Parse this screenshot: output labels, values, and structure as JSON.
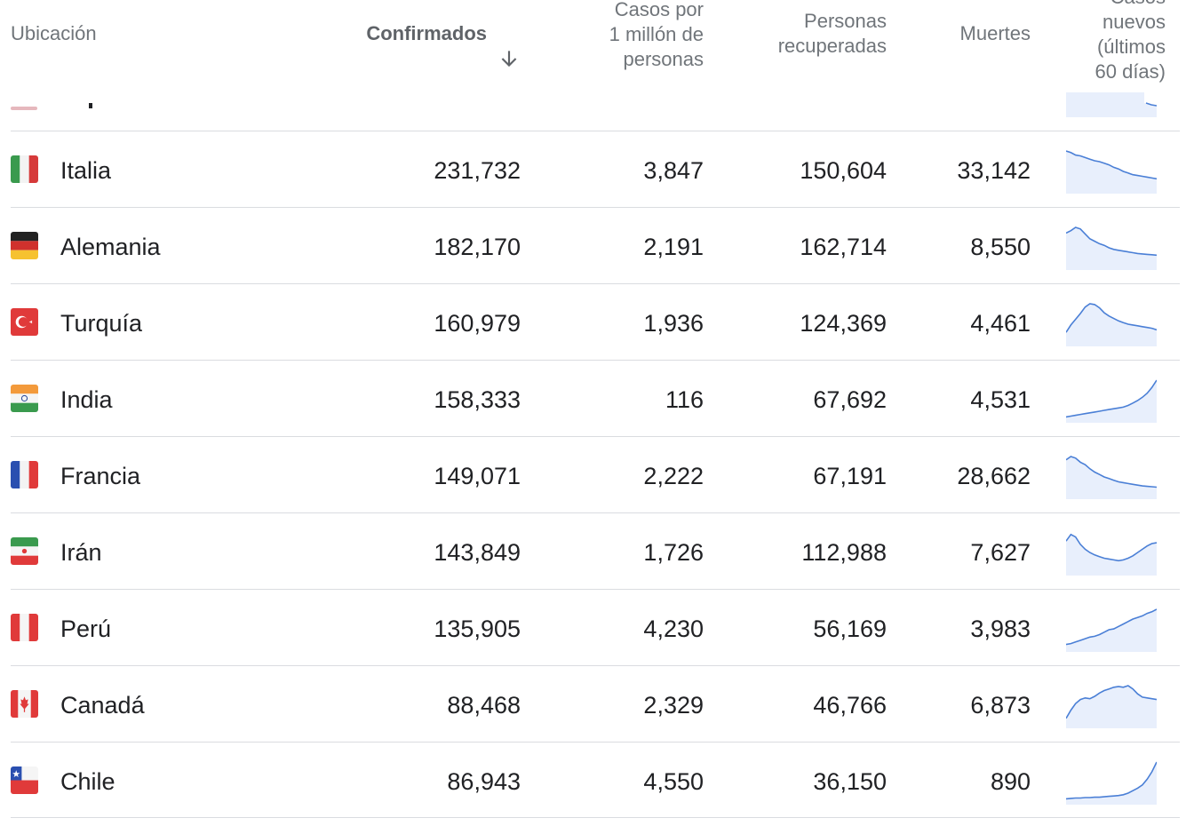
{
  "header": {
    "location": "Ubicación",
    "confirmed": "Confirmados",
    "per_million": "Casos por\n1 millón de\npersonas",
    "recovered": "Personas\nrecuperadas",
    "deaths": "Muertes",
    "new_cases": "Casos\nnuevos\n(últimos\n60 días)",
    "sort_icon": "arrow-down-icon"
  },
  "colors": {
    "spark_line": "#4a7fd6",
    "spark_fill": "#e8effc",
    "divider": "#dadce0",
    "header_text": "#70757a"
  },
  "rows": [
    {
      "name": "Italia",
      "flag": "italy-flag-icon",
      "confirmed": "231,732",
      "per_million": "3,847",
      "recovered": "150,604",
      "deaths": "33,142",
      "trend": [
        100,
        96,
        90,
        88,
        84,
        80,
        76,
        74,
        70,
        66,
        60,
        56,
        50,
        46,
        42,
        40,
        38,
        36,
        34,
        32
      ]
    },
    {
      "name": "Alemania",
      "flag": "germany-flag-icon",
      "confirmed": "182,170",
      "per_million": "2,191",
      "recovered": "162,714",
      "deaths": "8,550",
      "trend": [
        86,
        92,
        100,
        96,
        84,
        72,
        66,
        60,
        56,
        50,
        46,
        44,
        42,
        40,
        38,
        36,
        35,
        34,
        33,
        32
      ]
    },
    {
      "name": "Turquía",
      "flag": "turkey-flag-icon",
      "confirmed": "160,979",
      "per_million": "1,936",
      "recovered": "124,369",
      "deaths": "4,461",
      "trend": [
        30,
        48,
        62,
        76,
        92,
        100,
        98,
        90,
        78,
        70,
        64,
        58,
        54,
        50,
        48,
        46,
        44,
        42,
        40,
        36
      ]
    },
    {
      "name": "India",
      "flag": "india-flag-icon",
      "confirmed": "158,333",
      "per_million": "116",
      "recovered": "67,692",
      "deaths": "4,531",
      "trend": [
        10,
        12,
        14,
        16,
        18,
        20,
        22,
        24,
        26,
        28,
        30,
        32,
        34,
        38,
        44,
        50,
        58,
        68,
        82,
        100
      ]
    },
    {
      "name": "Francia",
      "flag": "france-flag-icon",
      "confirmed": "149,071",
      "per_million": "2,222",
      "recovered": "67,191",
      "deaths": "28,662",
      "trend": [
        92,
        100,
        96,
        86,
        80,
        70,
        62,
        56,
        50,
        46,
        42,
        38,
        36,
        34,
        32,
        30,
        28,
        27,
        26,
        25
      ]
    },
    {
      "name": "Irán",
      "flag": "iran-flag-icon",
      "confirmed": "143,849",
      "per_million": "1,726",
      "recovered": "112,988",
      "deaths": "7,627",
      "trend": [
        80,
        96,
        90,
        72,
        60,
        52,
        46,
        42,
        38,
        36,
        34,
        32,
        34,
        38,
        44,
        52,
        60,
        68,
        74,
        76
      ]
    },
    {
      "name": "Perú",
      "flag": "peru-flag-icon",
      "confirmed": "135,905",
      "per_million": "4,230",
      "recovered": "56,169",
      "deaths": "3,983",
      "trend": [
        14,
        16,
        20,
        24,
        28,
        32,
        34,
        38,
        44,
        50,
        52,
        58,
        64,
        70,
        76,
        80,
        84,
        90,
        94,
        100
      ]
    },
    {
      "name": "Canadá",
      "flag": "canada-flag-icon",
      "confirmed": "88,468",
      "per_million": "2,329",
      "recovered": "46,766",
      "deaths": "6,873",
      "trend": [
        20,
        40,
        56,
        66,
        70,
        68,
        74,
        82,
        88,
        92,
        96,
        98,
        96,
        100,
        92,
        80,
        72,
        70,
        68,
        66
      ]
    },
    {
      "name": "Chile",
      "flag": "chile-flag-icon",
      "confirmed": "86,943",
      "per_million": "4,550",
      "recovered": "36,150",
      "deaths": "890",
      "trend": [
        10,
        11,
        12,
        12,
        13,
        13,
        14,
        14,
        15,
        16,
        17,
        18,
        20,
        24,
        30,
        36,
        44,
        58,
        76,
        100
      ]
    }
  ]
}
